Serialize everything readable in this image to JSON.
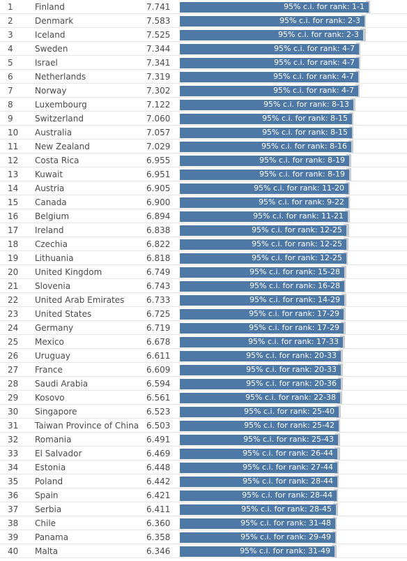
{
  "chart_data": {
    "type": "bar",
    "orientation": "horizontal",
    "title": "",
    "xlabel": "",
    "ylabel": "",
    "xlim": [
      0,
      7.741
    ],
    "bar_color": "#4e79a7",
    "ci_color": "#c9ccd1",
    "ci_label_prefix": "95% c.i. for rank: ",
    "rows": [
      {
        "rank": "1",
        "country": "Finland",
        "score": "7.741",
        "value": 7.741,
        "upper": 7.81,
        "ci": "1-1"
      },
      {
        "rank": "2",
        "country": "Denmark",
        "score": "7.583",
        "value": 7.583,
        "upper": 7.64,
        "ci": "2-3"
      },
      {
        "rank": "3",
        "country": "Iceland",
        "score": "7.525",
        "value": 7.525,
        "upper": 7.62,
        "ci": "2-3"
      },
      {
        "rank": "4",
        "country": "Sweden",
        "score": "7.344",
        "value": 7.344,
        "upper": 7.41,
        "ci": "4-7"
      },
      {
        "rank": "5",
        "country": "Israel",
        "score": "7.341",
        "value": 7.341,
        "upper": 7.41,
        "ci": "4-7"
      },
      {
        "rank": "6",
        "country": "Netherlands",
        "score": "7.319",
        "value": 7.319,
        "upper": 7.38,
        "ci": "4-7"
      },
      {
        "rank": "7",
        "country": "Norway",
        "score": "7.302",
        "value": 7.302,
        "upper": 7.38,
        "ci": "4-7"
      },
      {
        "rank": "8",
        "country": "Luxembourg",
        "score": "7.122",
        "value": 7.122,
        "upper": 7.19,
        "ci": "8-13"
      },
      {
        "rank": "9",
        "country": "Switzerland",
        "score": "7.060",
        "value": 7.06,
        "upper": 7.12,
        "ci": "8-15"
      },
      {
        "rank": "10",
        "country": "Australia",
        "score": "7.057",
        "value": 7.057,
        "upper": 7.12,
        "ci": "8-15"
      },
      {
        "rank": "11",
        "country": "New Zealand",
        "score": "7.029",
        "value": 7.029,
        "upper": 7.1,
        "ci": "8-16"
      },
      {
        "rank": "12",
        "country": "Costa Rica",
        "score": "6.955",
        "value": 6.955,
        "upper": 7.04,
        "ci": "8-19"
      },
      {
        "rank": "13",
        "country": "Kuwait",
        "score": "6.951",
        "value": 6.951,
        "upper": 7.04,
        "ci": "8-19"
      },
      {
        "rank": "14",
        "country": "Austria",
        "score": "6.905",
        "value": 6.905,
        "upper": 6.97,
        "ci": "11-20"
      },
      {
        "rank": "15",
        "country": "Canada",
        "score": "6.900",
        "value": 6.9,
        "upper": 6.96,
        "ci": "9-22"
      },
      {
        "rank": "16",
        "country": "Belgium",
        "score": "6.894",
        "value": 6.894,
        "upper": 6.96,
        "ci": "11-21"
      },
      {
        "rank": "17",
        "country": "Ireland",
        "score": "6.838",
        "value": 6.838,
        "upper": 6.93,
        "ci": "12-25"
      },
      {
        "rank": "18",
        "country": "Czechia",
        "score": "6.822",
        "value": 6.822,
        "upper": 6.9,
        "ci": "12-25"
      },
      {
        "rank": "19",
        "country": "Lithuania",
        "score": "6.818",
        "value": 6.818,
        "upper": 6.89,
        "ci": "12-25"
      },
      {
        "rank": "20",
        "country": "United Kingdom",
        "score": "6.749",
        "value": 6.749,
        "upper": 6.82,
        "ci": "15-28"
      },
      {
        "rank": "21",
        "country": "Slovenia",
        "score": "6.743",
        "value": 6.743,
        "upper": 6.81,
        "ci": "16-28"
      },
      {
        "rank": "22",
        "country": "United Arab Emirates",
        "score": "6.733",
        "value": 6.733,
        "upper": 6.82,
        "ci": "14-29"
      },
      {
        "rank": "23",
        "country": "United States",
        "score": "6.725",
        "value": 6.725,
        "upper": 6.8,
        "ci": "17-29"
      },
      {
        "rank": "24",
        "country": "Germany",
        "score": "6.719",
        "value": 6.719,
        "upper": 6.79,
        "ci": "17-29"
      },
      {
        "rank": "25",
        "country": "Mexico",
        "score": "6.678",
        "value": 6.678,
        "upper": 6.77,
        "ci": "17-33"
      },
      {
        "rank": "26",
        "country": "Uruguay",
        "score": "6.611",
        "value": 6.611,
        "upper": 6.69,
        "ci": "20-33"
      },
      {
        "rank": "27",
        "country": "France",
        "score": "6.609",
        "value": 6.609,
        "upper": 6.68,
        "ci": "20-33"
      },
      {
        "rank": "28",
        "country": "Saudi Arabia",
        "score": "6.594",
        "value": 6.594,
        "upper": 6.69,
        "ci": "20-36"
      },
      {
        "rank": "29",
        "country": "Kosovo",
        "score": "6.561",
        "value": 6.561,
        "upper": 6.65,
        "ci": "22-38"
      },
      {
        "rank": "30",
        "country": "Singapore",
        "score": "6.523",
        "value": 6.523,
        "upper": 6.6,
        "ci": "25-40"
      },
      {
        "rank": "31",
        "country": "Taiwan Province of China",
        "score": "6.503",
        "value": 6.503,
        "upper": 6.58,
        "ci": "25-42"
      },
      {
        "rank": "32",
        "country": "Romania",
        "score": "6.491",
        "value": 6.491,
        "upper": 6.58,
        "ci": "25-43"
      },
      {
        "rank": "33",
        "country": "El Salvador",
        "score": "6.469",
        "value": 6.469,
        "upper": 6.56,
        "ci": "26-44"
      },
      {
        "rank": "34",
        "country": "Estonia",
        "score": "6.448",
        "value": 6.448,
        "upper": 6.52,
        "ci": "27-44"
      },
      {
        "rank": "35",
        "country": "Poland",
        "score": "6.442",
        "value": 6.442,
        "upper": 6.52,
        "ci": "28-44"
      },
      {
        "rank": "36",
        "country": "Spain",
        "score": "6.421",
        "value": 6.421,
        "upper": 6.49,
        "ci": "28-44"
      },
      {
        "rank": "37",
        "country": "Serbia",
        "score": "6.411",
        "value": 6.411,
        "upper": 6.49,
        "ci": "28-45"
      },
      {
        "rank": "38",
        "country": "Chile",
        "score": "6.360",
        "value": 6.36,
        "upper": 6.44,
        "ci": "31-48"
      },
      {
        "rank": "39",
        "country": "Panama",
        "score": "6.358",
        "value": 6.358,
        "upper": 6.44,
        "ci": "29-49"
      },
      {
        "rank": "40",
        "country": "Malta",
        "score": "6.346",
        "value": 6.346,
        "upper": 6.43,
        "ci": "31-49"
      }
    ]
  }
}
